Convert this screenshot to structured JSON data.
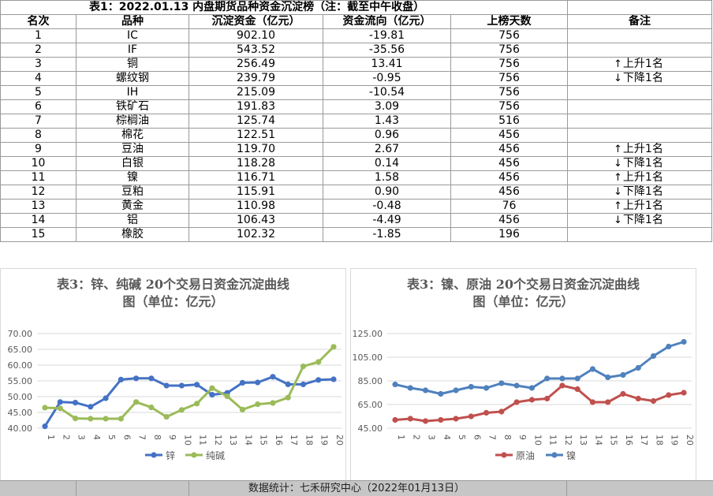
{
  "table": {
    "title": "表1：2022.01.13 内盘期货品种资金沉淀榜（注：截至中午收盘）",
    "headers": [
      "名次",
      "品种",
      "沉淀资金（亿元）",
      "资金流向（亿元）",
      "上榜天数",
      "备注"
    ],
    "rows": [
      {
        "rank": "1",
        "name": "IC",
        "capital": "902.10",
        "flow": "-19.81",
        "days": "756",
        "note": "",
        "dir": ""
      },
      {
        "rank": "2",
        "name": "IF",
        "capital": "543.52",
        "flow": "-35.56",
        "days": "756",
        "note": "",
        "dir": ""
      },
      {
        "rank": "3",
        "name": "铜",
        "capital": "256.49",
        "flow": "13.41",
        "days": "756",
        "note": "上升1名",
        "dir": "up"
      },
      {
        "rank": "4",
        "name": "螺纹钢",
        "capital": "239.79",
        "flow": "-0.95",
        "days": "756",
        "note": "下降1名",
        "dir": "down"
      },
      {
        "rank": "5",
        "name": "IH",
        "capital": "215.09",
        "flow": "-10.54",
        "days": "756",
        "note": "",
        "dir": ""
      },
      {
        "rank": "6",
        "name": "铁矿石",
        "capital": "191.83",
        "flow": "3.09",
        "days": "756",
        "note": "",
        "dir": ""
      },
      {
        "rank": "7",
        "name": "棕榈油",
        "capital": "125.74",
        "flow": "1.43",
        "days": "516",
        "note": "",
        "dir": ""
      },
      {
        "rank": "8",
        "name": "棉花",
        "capital": "122.51",
        "flow": "0.96",
        "days": "456",
        "note": "",
        "dir": ""
      },
      {
        "rank": "9",
        "name": "豆油",
        "capital": "119.70",
        "flow": "2.67",
        "days": "456",
        "note": "上升1名",
        "dir": "up"
      },
      {
        "rank": "10",
        "name": "白银",
        "capital": "118.28",
        "flow": "0.14",
        "days": "456",
        "note": "下降1名",
        "dir": "down"
      },
      {
        "rank": "11",
        "name": "镍",
        "capital": "116.71",
        "flow": "1.58",
        "days": "456",
        "note": "上升1名",
        "dir": "up"
      },
      {
        "rank": "12",
        "name": "豆粕",
        "capital": "115.91",
        "flow": "0.90",
        "days": "456",
        "note": "下降1名",
        "dir": "down"
      },
      {
        "rank": "13",
        "name": "黄金",
        "capital": "110.98",
        "flow": "-0.48",
        "days": "76",
        "note": "上升1名",
        "dir": "up"
      },
      {
        "rank": "14",
        "name": "铝",
        "capital": "106.43",
        "flow": "-4.49",
        "days": "456",
        "note": "下降1名",
        "dir": "down"
      },
      {
        "rank": "15",
        "name": "橡胶",
        "capital": "102.32",
        "flow": "-1.85",
        "days": "196",
        "note": "",
        "dir": ""
      }
    ]
  },
  "icons": {
    "up": "arrow-up-icon",
    "down": "arrow-down-icon"
  },
  "footer": {
    "text": "数据统计：七禾研究中心（2022年01月13日）"
  },
  "chart_data": [
    {
      "type": "line",
      "title_line1": "表3：锌、纯碱 20个交易日资金沉淀曲线",
      "title_line2": "图（单位：亿元）",
      "x": [
        "1",
        "2",
        "3",
        "4",
        "5",
        "6",
        "7",
        "8",
        "9",
        "10",
        "11",
        "12",
        "13",
        "14",
        "15",
        "16",
        "17",
        "18",
        "19",
        "20"
      ],
      "ylim": [
        40,
        70
      ],
      "yticks": [
        "40.00",
        "45.00",
        "50.00",
        "55.00",
        "60.00",
        "65.00",
        "70.00"
      ],
      "grid": true,
      "legend": "bottom",
      "series": [
        {
          "name": "锌",
          "color": "#4472c4",
          "values": [
            40.6,
            48.3,
            48.1,
            46.8,
            49.5,
            55.4,
            55.8,
            55.8,
            53.5,
            53.5,
            53.8,
            50.6,
            51.2,
            54.4,
            54.5,
            56.3,
            53.9,
            53.9,
            55.3,
            55.5
          ]
        },
        {
          "name": "纯碱",
          "color": "#9bbb59",
          "values": [
            46.5,
            46.3,
            43.1,
            43.0,
            43.0,
            43.0,
            48.3,
            46.6,
            43.6,
            45.8,
            47.8,
            52.7,
            50.1,
            45.9,
            47.6,
            48.0,
            49.7,
            59.6,
            61.0,
            65.8
          ]
        }
      ]
    },
    {
      "type": "line",
      "title_line1": "表3：镍、原油 20个交易日资金沉淀曲线",
      "title_line2": "图（单位：亿元）",
      "x": [
        "1",
        "2",
        "3",
        "4",
        "5",
        "6",
        "7",
        "8",
        "9",
        "10",
        "11",
        "12",
        "13",
        "14",
        "15",
        "16",
        "17",
        "18",
        "19",
        "20"
      ],
      "ylim": [
        45,
        125
      ],
      "yticks": [
        "45.00",
        "65.00",
        "85.00",
        "105.00",
        "125.00"
      ],
      "grid": true,
      "legend": "bottom",
      "series": [
        {
          "name": "原油",
          "color": "#c0504d",
          "values": [
            52,
            53,
            51,
            52,
            53,
            55,
            58,
            59,
            67,
            69,
            70,
            81,
            78,
            67,
            67,
            74,
            70,
            68,
            73,
            75
          ]
        },
        {
          "name": "镍",
          "color": "#4f81bd",
          "values": [
            82,
            79,
            77,
            74,
            77,
            80,
            79,
            83,
            81,
            79,
            87,
            87,
            87,
            95,
            88,
            90,
            96,
            106,
            114,
            118
          ]
        }
      ]
    }
  ]
}
